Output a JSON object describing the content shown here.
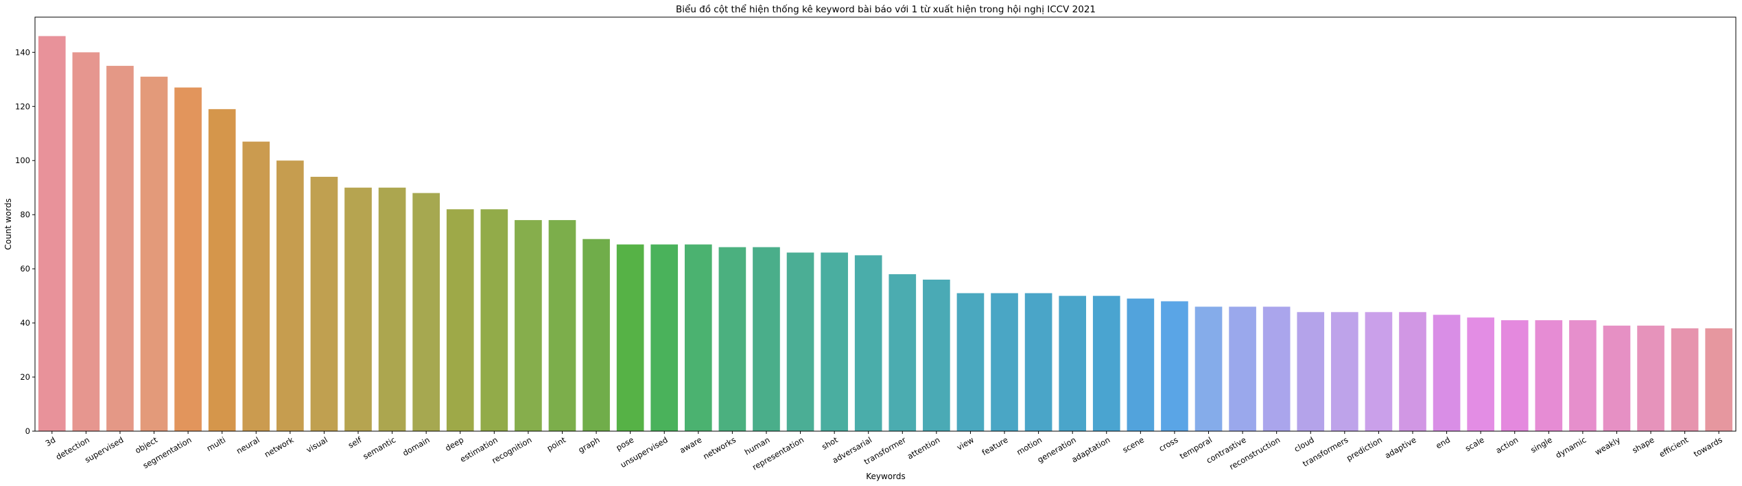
{
  "chart_data": {
    "type": "bar",
    "title": "Biểu đồ cột thể hiện thống kê keyword bài báo với 1 từ xuất hiện trong hội nghị ICCV 2021",
    "xlabel": "Keywords",
    "ylabel": "Count words",
    "ylim": [
      0,
      153
    ],
    "yticks": [
      0,
      20,
      40,
      60,
      80,
      100,
      120,
      140
    ],
    "grid": false,
    "legend": "none",
    "categories": [
      "3d",
      "detection",
      "supervised",
      "object",
      "segmentation",
      "multi",
      "neural",
      "network",
      "visual",
      "self",
      "semantic",
      "domain",
      "deep",
      "estimation",
      "recognition",
      "point",
      "graph",
      "pose",
      "unsupervised",
      "aware",
      "networks",
      "human",
      "representation",
      "shot",
      "adversarial",
      "transformer",
      "attention",
      "view",
      "feature",
      "motion",
      "generation",
      "adaptation",
      "scene",
      "cross",
      "temporal",
      "contrastive",
      "reconstruction",
      "cloud",
      "transformers",
      "prediction",
      "adaptive",
      "end",
      "scale",
      "action",
      "single",
      "dynamic",
      "weakly",
      "shape",
      "efficient",
      "towards"
    ],
    "values": [
      146,
      140,
      135,
      131,
      127,
      119,
      107,
      100,
      94,
      90,
      90,
      88,
      82,
      82,
      78,
      78,
      71,
      69,
      69,
      69,
      68,
      68,
      66,
      66,
      65,
      58,
      56,
      51,
      51,
      51,
      50,
      50,
      49,
      48,
      46,
      46,
      46,
      44,
      44,
      44,
      44,
      43,
      42,
      41,
      41,
      41,
      39,
      39,
      38,
      38
    ],
    "colors": [
      "#e8929a",
      "#e6968f",
      "#e49886",
      "#e39a7a",
      "#e2955c",
      "#d5964b",
      "#cb9b4f",
      "#c69d4f",
      "#c0a050",
      "#b6a450",
      "#aca64f",
      "#a6a850",
      "#9ea948",
      "#92ab49",
      "#86ae4c",
      "#7cae4b",
      "#70ad4a",
      "#56b246",
      "#4ab25b",
      "#4bb270",
      "#4bb07f",
      "#4aae8a",
      "#4bae95",
      "#4aaea0",
      "#4aadaa",
      "#4bacb0",
      "#4aaab5",
      "#4aa8bf",
      "#4aa6c5",
      "#4aa5c8",
      "#4aa5ca",
      "#4aa4d0",
      "#52a3dc",
      "#5aa5e6",
      "#85acea",
      "#9aa8ec",
      "#aaa5ec",
      "#b4a3ea",
      "#bea3ea",
      "#caa0ea",
      "#d197e4",
      "#d98ee6",
      "#e38de4",
      "#e489de",
      "#e68cd4",
      "#e68fcc",
      "#e690c4",
      "#e693bb",
      "#e694ae",
      "#e6979f"
    ]
  }
}
